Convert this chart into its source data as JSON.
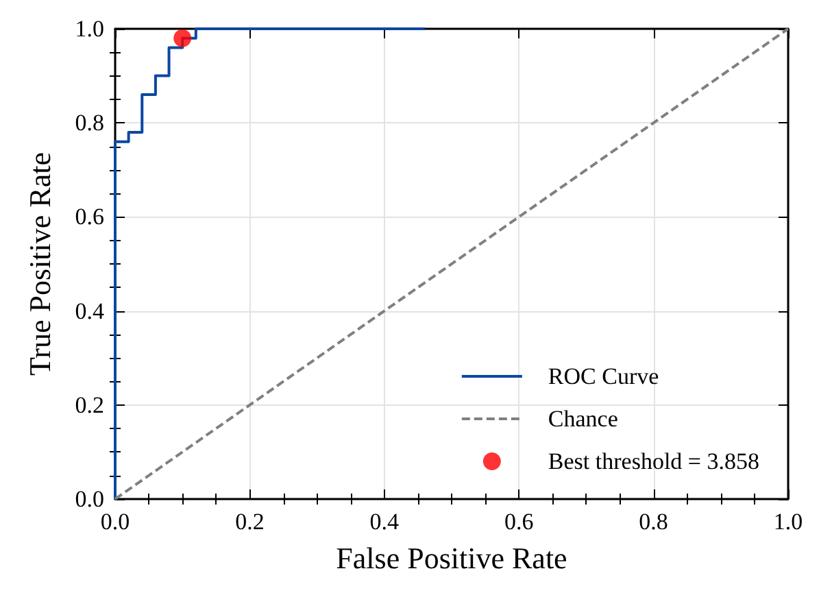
{
  "chart_data": {
    "type": "line",
    "xlabel": "False Positive Rate",
    "ylabel": "True Positive Rate",
    "xlim": [
      0,
      1
    ],
    "ylim": [
      0,
      1
    ],
    "xticks": [
      {
        "value": 0,
        "label": "0.0"
      },
      0.2,
      0.4,
      0.6,
      0.8,
      {
        "value": 1,
        "label": "1.0"
      }
    ],
    "yticks": [
      {
        "value": 0,
        "label": "0.0"
      },
      0.2,
      0.4,
      0.6,
      0.8,
      {
        "value": 1,
        "label": "1.0"
      }
    ],
    "grid": true,
    "legend": "bottom right",
    "series": [
      {
        "name": "ROC Curve",
        "color": "#0d47a1",
        "line_style": "solid",
        "marker": "none",
        "x": [
          0,
          0,
          0.02,
          0.02,
          0.04,
          0.04,
          0.06,
          0.06,
          0.08,
          0.08,
          0.1,
          0.1,
          0.12,
          0.12,
          0.46
        ],
        "values": [
          0,
          0.76,
          0.76,
          0.78,
          0.78,
          0.86,
          0.86,
          0.9,
          0.9,
          0.96,
          0.96,
          0.98,
          0.98,
          1.0,
          1.0
        ]
      },
      {
        "name": "Chance",
        "color": "#808080",
        "line_style": "dashed",
        "marker": "none",
        "x": [
          0,
          1
        ],
        "values": [
          0,
          1
        ]
      },
      {
        "name": "Best threshold = 3.858",
        "type": "scatter",
        "color": "#ff0000",
        "marker": "circle",
        "x": [
          0.1
        ],
        "values": [
          0.98
        ]
      }
    ]
  }
}
